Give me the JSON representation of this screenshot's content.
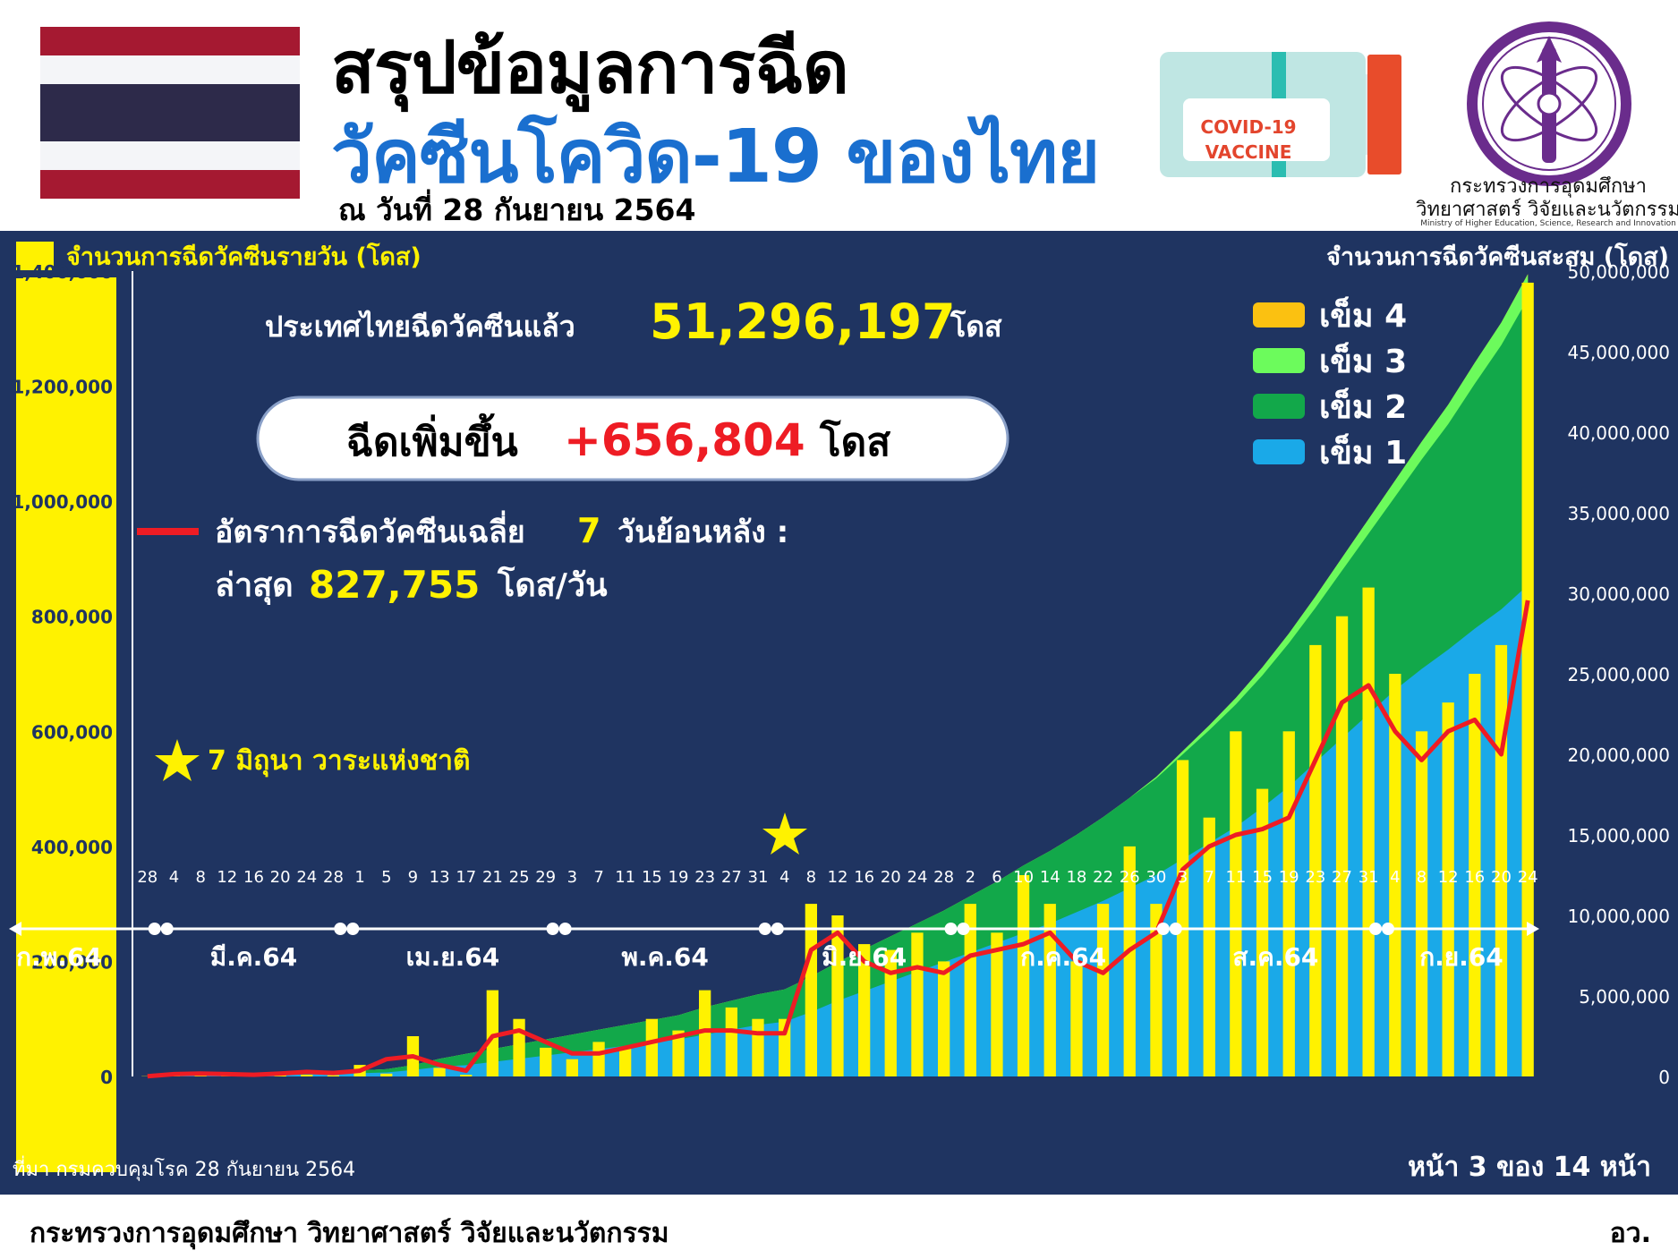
{
  "header": {
    "title_line1": "สรุปข้อมูลการฉีด",
    "title_line2": "วัคซีนโควิด-19 ของไทย",
    "date": "ณ วันที่ 28 กันยายน 2564",
    "vaccine_badge_line1": "COVID-19",
    "vaccine_badge_line2": "VACCINE",
    "ministry_name_th_line1": "กระทรวงการอุดมศึกษา",
    "ministry_name_th_line2": "วิทยาศาสตร์ วิจัยและนวัตกรรม",
    "ministry_name_en": "Ministry of Higher Education, Science, Research and Innovation"
  },
  "colors": {
    "panel_bg": "#1f3461",
    "daily_bar": "#fff200",
    "dose1": "#1aa9e8",
    "dose2": "#12a84a",
    "dose3": "#6cfb5c",
    "dose4": "#fbc111",
    "avg_line": "#ee1c24",
    "title_blue": "#1a6fcf",
    "increase_red": "#ee1c24"
  },
  "summary": {
    "total_prefix": "ประเทศไทยฉีดวัคซีนแล้ว",
    "total_value": "51,296,197",
    "total_unit": "โดส",
    "increase_prefix": "ฉีดเพิ่มขึ้น",
    "increase_value": "+656,804",
    "increase_unit": "โดส",
    "avg_label": "อัตราการฉีดวัคซีนเฉลี่ย",
    "avg_days": "7",
    "avg_suffix": "วันย้อนหลัง :",
    "latest_label": "ล่าสุด",
    "latest_value": "827,755",
    "latest_unit": "โดส/วัน",
    "star_note": "7 มิถุนา วาระแห่งชาติ"
  },
  "footer": {
    "source": "ที่มา กรมควบคุมโรค 28 กันยายน 2564",
    "page": "หน้า 3 ของ 14 หน้า",
    "ministry": "กระทรวงการอุดมศึกษา วิทยาศาสตร์ วิจัยและนวัตกรรม",
    "abbrev": "อว."
  },
  "chart_data": {
    "type": "bar",
    "title": "",
    "left_axis_title": "จำนวนการฉีดวัคซีนรายวัน (โดส)",
    "right_axis_title": "จำนวนการฉีดวัคซีนสะสม (โดส)",
    "left_ticks": [
      "0",
      "200,000",
      "400,000",
      "600,000",
      "800,000",
      "1,000,000",
      "1,200,000",
      "1,400,000"
    ],
    "left_ylim": [
      0,
      1400000
    ],
    "right_ticks": [
      "0",
      "5,000,000",
      "10,000,000",
      "15,000,000",
      "20,000,000",
      "25,000,000",
      "30,000,000",
      "35,000,000",
      "40,000,000",
      "45,000,000",
      "50,000,000"
    ],
    "right_ylim": [
      0,
      50000000
    ],
    "legend": [
      "เข็ม 4",
      "เข็ม 3",
      "เข็ม 2",
      "เข็ม 1"
    ],
    "avg_line_legend": "อัตราการฉีดวัคซีนเฉลี่ย 7 วันย้อนหลัง",
    "x_day_ticks": [
      "28",
      "4",
      "8",
      "12",
      "16",
      "20",
      "24",
      "28",
      "1",
      "5",
      "9",
      "13",
      "17",
      "21",
      "25",
      "29",
      "3",
      "7",
      "11",
      "15",
      "19",
      "23",
      "27",
      "31",
      "4",
      "8",
      "12",
      "16",
      "20",
      "24",
      "28",
      "2",
      "6",
      "10",
      "14",
      "18",
      "22",
      "26",
      "30",
      "3",
      "7",
      "11",
      "15",
      "19",
      "23",
      "27",
      "31",
      "4",
      "8",
      "12",
      "16",
      "20",
      "24"
    ],
    "months": [
      "ก.พ.64",
      "มี.ค.64",
      "เม.ย.64",
      "พ.ค.64",
      "มิ.ย.64",
      "ก.ค.64",
      "ส.ค.64",
      "ก.ย.64"
    ],
    "month_dot_after_ticks": [
      0,
      7,
      15,
      23,
      30,
      38,
      46
    ],
    "series": [
      {
        "name": "จำนวนการฉีดวัคซีนรายวัน",
        "axis": "left",
        "type": "bar",
        "points_sampled_every_4_days": [
          500,
          2500,
          5000,
          4000,
          3000,
          8000,
          3000,
          2000,
          20000,
          5000,
          70000,
          15000,
          3000,
          150000,
          100000,
          50000,
          30000,
          60000,
          50000,
          100000,
          80000,
          150000,
          120000,
          100000,
          100000,
          300000,
          280000,
          230000,
          220000,
          250000,
          200000,
          300000,
          250000,
          350000,
          300000,
          200000,
          300000,
          400000,
          300000,
          550000,
          450000,
          600000,
          500000,
          600000,
          750000,
          800000,
          850000,
          700000,
          600000,
          650000,
          700000,
          750000,
          1380000
        ]
      },
      {
        "name": "เข็ม 1",
        "axis": "right",
        "type": "area",
        "points_sampled_every_4_days": [
          0,
          10000,
          40000,
          60000,
          80000,
          100000,
          130000,
          160000,
          200000,
          250000,
          400000,
          600000,
          700000,
          900000,
          1100000,
          1300000,
          1500000,
          1700000,
          1900000,
          2100000,
          2300000,
          2600000,
          2900000,
          3200000,
          3400000,
          4000000,
          4700000,
          5300000,
          5900000,
          6500000,
          7100000,
          7700000,
          8300000,
          8900000,
          9500000,
          10200000,
          10900000,
          11700000,
          12500000,
          13500000,
          14500000,
          15500000,
          16700000,
          18000000,
          19500000,
          21000000,
          22500000,
          24000000,
          25300000,
          26500000,
          27800000,
          29000000,
          30500000
        ]
      },
      {
        "name": "เข็ม 2",
        "axis": "right",
        "type": "area",
        "points_sampled_every_4_days": [
          0,
          0,
          0,
          20000,
          40000,
          60000,
          100000,
          130000,
          170000,
          200000,
          300000,
          500000,
          700000,
          800000,
          900000,
          1000000,
          1100000,
          1200000,
          1300000,
          1400000,
          1500000,
          1700000,
          1800000,
          1900000,
          2000000,
          2200000,
          2400000,
          2600000,
          2800000,
          3000000,
          3200000,
          3500000,
          3800000,
          4200000,
          4500000,
          4800000,
          5200000,
          5600000,
          6000000,
          6500000,
          7000000,
          7600000,
          8200000,
          8900000,
          9600000,
          10400000,
          11200000,
          12000000,
          13000000,
          14000000,
          15200000,
          16400000,
          17800000
        ]
      },
      {
        "name": "เข็ม 3",
        "axis": "right",
        "type": "area",
        "points_sampled_every_4_days": [
          0,
          0,
          0,
          0,
          0,
          0,
          0,
          0,
          0,
          0,
          0,
          0,
          0,
          0,
          0,
          0,
          0,
          0,
          0,
          0,
          0,
          0,
          0,
          0,
          0,
          0,
          0,
          0,
          0,
          0,
          0,
          0,
          0,
          0,
          0,
          0,
          0,
          0,
          100000,
          200000,
          300000,
          400000,
          500000,
          600000,
          700000,
          800000,
          900000,
          1000000,
          1100000,
          1200000,
          1300000,
          1400000,
          1500000
        ]
      },
      {
        "name": "เข็ม 4",
        "axis": "right",
        "type": "area",
        "points_sampled_every_4_days": [
          0,
          0,
          0,
          0,
          0,
          0,
          0,
          0,
          0,
          0,
          0,
          0,
          0,
          0,
          0,
          0,
          0,
          0,
          0,
          0,
          0,
          0,
          0,
          0,
          0,
          0,
          0,
          0,
          0,
          0,
          0,
          0,
          0,
          0,
          0,
          0,
          0,
          0,
          0,
          0,
          0,
          0,
          0,
          0,
          0,
          0,
          0,
          0,
          0,
          0,
          0,
          0,
          20000
        ]
      },
      {
        "name": "อัตราการฉีดวัคซีนเฉลี่ย 7 วันย้อนหลัง",
        "axis": "left",
        "type": "line",
        "points_sampled_every_4_days": [
          500,
          4000,
          5000,
          4000,
          3000,
          5000,
          8000,
          6000,
          10000,
          30000,
          35000,
          20000,
          10000,
          70000,
          80000,
          60000,
          40000,
          40000,
          50000,
          60000,
          70000,
          80000,
          80000,
          75000,
          75000,
          220000,
          250000,
          200000,
          180000,
          190000,
          180000,
          210000,
          220000,
          230000,
          250000,
          200000,
          180000,
          220000,
          250000,
          360000,
          400000,
          420000,
          430000,
          450000,
          550000,
          650000,
          680000,
          600000,
          550000,
          600000,
          620000,
          560000,
          827755
        ]
      }
    ]
  }
}
